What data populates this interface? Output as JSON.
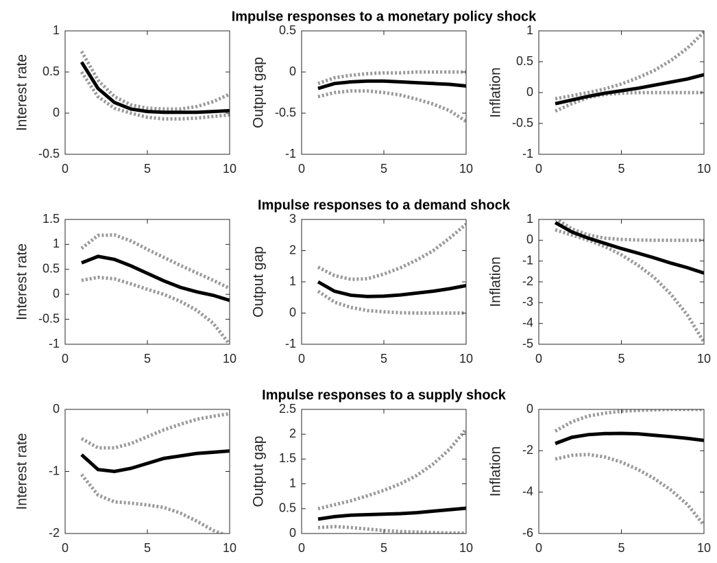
{
  "chart_data": [
    {
      "type": "line",
      "ylabel": "Interest rate",
      "x": [
        1,
        2,
        3,
        4,
        5,
        6,
        7,
        8,
        9,
        10
      ],
      "xlim": [
        0,
        10
      ],
      "xticks": [
        0,
        5,
        10
      ],
      "ylim": [
        -0.5,
        1
      ],
      "yticks": [
        -0.5,
        0,
        0.5,
        1
      ],
      "series": [
        {
          "color": "#999999",
          "style": "dotted",
          "values": [
            0.75,
            0.4,
            0.2,
            0.1,
            0.06,
            0.05,
            0.05,
            0.08,
            0.14,
            0.23
          ]
        },
        {
          "color": "#999999",
          "style": "dotted",
          "values": [
            0.5,
            0.2,
            0.06,
            0.0,
            -0.05,
            -0.07,
            -0.07,
            -0.06,
            -0.04,
            -0.02
          ]
        },
        {
          "color": "#000000",
          "style": "solid",
          "values": [
            0.62,
            0.3,
            0.13,
            0.05,
            0.02,
            0.01,
            0.01,
            0.01,
            0.02,
            0.03
          ]
        }
      ]
    },
    {
      "type": "line",
      "title": "Impulse responses to a monetary policy shock",
      "ylabel": "Output gap",
      "x": [
        1,
        2,
        3,
        4,
        5,
        6,
        7,
        8,
        9,
        10
      ],
      "xlim": [
        0,
        10
      ],
      "xticks": [
        0,
        5,
        10
      ],
      "ylim": [
        -1,
        0.5
      ],
      "yticks": [
        -1,
        -0.5,
        0,
        0.5
      ],
      "series": [
        {
          "color": "#999999",
          "style": "dotted",
          "values": [
            -0.14,
            -0.07,
            -0.04,
            -0.02,
            -0.01,
            -0.01,
            0,
            0,
            0,
            0
          ]
        },
        {
          "color": "#999999",
          "style": "dotted",
          "values": [
            -0.3,
            -0.25,
            -0.23,
            -0.23,
            -0.25,
            -0.28,
            -0.33,
            -0.39,
            -0.47,
            -0.6
          ]
        },
        {
          "color": "#000000",
          "style": "solid",
          "values": [
            -0.2,
            -0.14,
            -0.12,
            -0.11,
            -0.11,
            -0.12,
            -0.13,
            -0.14,
            -0.15,
            -0.17
          ]
        }
      ]
    },
    {
      "type": "line",
      "ylabel": "Inflation",
      "x": [
        1,
        2,
        3,
        4,
        5,
        6,
        7,
        8,
        9,
        10
      ],
      "xlim": [
        0,
        10
      ],
      "xticks": [
        0,
        5,
        10
      ],
      "ylim": [
        -1,
        1
      ],
      "yticks": [
        -1,
        -0.5,
        0,
        0.5,
        1
      ],
      "series": [
        {
          "color": "#999999",
          "style": "dotted",
          "values": [
            -0.1,
            -0.05,
            0,
            0.06,
            0.14,
            0.24,
            0.36,
            0.52,
            0.72,
            0.98
          ]
        },
        {
          "color": "#999999",
          "style": "dotted",
          "values": [
            -0.3,
            -0.18,
            -0.08,
            -0.03,
            -0.01,
            0,
            0,
            0,
            0,
            0
          ]
        },
        {
          "color": "#000000",
          "style": "solid",
          "values": [
            -0.18,
            -0.12,
            -0.06,
            -0.01,
            0.03,
            0.07,
            0.12,
            0.17,
            0.22,
            0.29
          ]
        }
      ]
    },
    {
      "type": "line",
      "ylabel": "Interest rate",
      "x": [
        1,
        2,
        3,
        4,
        5,
        6,
        7,
        8,
        9,
        10
      ],
      "xlim": [
        0,
        10
      ],
      "xticks": [
        0,
        5,
        10
      ],
      "ylim": [
        -1,
        1.5
      ],
      "yticks": [
        -1,
        -0.5,
        0,
        0.5,
        1,
        1.5
      ],
      "series": [
        {
          "color": "#999999",
          "style": "dotted",
          "values": [
            0.92,
            1.18,
            1.19,
            1.07,
            0.9,
            0.74,
            0.58,
            0.43,
            0.28,
            0.12
          ]
        },
        {
          "color": "#999999",
          "style": "dotted",
          "values": [
            0.28,
            0.34,
            0.31,
            0.21,
            0.1,
            0.0,
            -0.14,
            -0.32,
            -0.58,
            -1.0
          ]
        },
        {
          "color": "#000000",
          "style": "solid",
          "values": [
            0.63,
            0.76,
            0.7,
            0.57,
            0.42,
            0.27,
            0.14,
            0.05,
            -0.02,
            -0.12
          ]
        }
      ]
    },
    {
      "type": "line",
      "title": "Impulse responses to a demand shock",
      "ylabel": "Output gap",
      "x": [
        1,
        2,
        3,
        4,
        5,
        6,
        7,
        8,
        9,
        10
      ],
      "xlim": [
        0,
        10
      ],
      "xticks": [
        0,
        5,
        10
      ],
      "ylim": [
        -1,
        3
      ],
      "yticks": [
        -1,
        0,
        1,
        2,
        3
      ],
      "series": [
        {
          "color": "#999999",
          "style": "dotted",
          "values": [
            1.47,
            1.2,
            1.08,
            1.1,
            1.25,
            1.45,
            1.7,
            2.0,
            2.4,
            2.85
          ]
        },
        {
          "color": "#999999",
          "style": "dotted",
          "values": [
            0.7,
            0.35,
            0.18,
            0.08,
            0.04,
            0.01,
            0,
            0,
            0,
            0
          ]
        },
        {
          "color": "#000000",
          "style": "solid",
          "values": [
            1.0,
            0.7,
            0.57,
            0.53,
            0.54,
            0.58,
            0.64,
            0.7,
            0.78,
            0.88
          ]
        }
      ]
    },
    {
      "type": "line",
      "ylabel": "Inflation",
      "x": [
        1,
        2,
        3,
        4,
        5,
        6,
        7,
        8,
        9,
        10
      ],
      "xlim": [
        0,
        10
      ],
      "xticks": [
        0,
        5,
        10
      ],
      "ylim": [
        -5,
        1
      ],
      "yticks": [
        -5,
        -4,
        -3,
        -2,
        -1,
        0,
        1
      ],
      "series": [
        {
          "color": "#999999",
          "style": "dotted",
          "values": [
            1.05,
            0.55,
            0.25,
            0.1,
            0.04,
            0.01,
            0,
            0,
            0,
            0
          ]
        },
        {
          "color": "#999999",
          "style": "dotted",
          "values": [
            0.5,
            0.25,
            0,
            -0.3,
            -0.7,
            -1.2,
            -1.8,
            -2.6,
            -3.6,
            -4.9
          ]
        },
        {
          "color": "#000000",
          "style": "solid",
          "values": [
            0.85,
            0.4,
            0.1,
            -0.15,
            -0.4,
            -0.62,
            -0.85,
            -1.1,
            -1.32,
            -1.58
          ]
        }
      ]
    },
    {
      "type": "line",
      "ylabel": "Interest rate",
      "x": [
        1,
        2,
        3,
        4,
        5,
        6,
        7,
        8,
        9,
        10
      ],
      "xlim": [
        0,
        10
      ],
      "xticks": [
        0,
        5,
        10
      ],
      "ylim": [
        -2,
        0
      ],
      "yticks": [
        -2,
        -1,
        0
      ],
      "series": [
        {
          "color": "#999999",
          "style": "dotted",
          "values": [
            -0.47,
            -0.62,
            -0.62,
            -0.55,
            -0.44,
            -0.33,
            -0.24,
            -0.16,
            -0.11,
            -0.07
          ]
        },
        {
          "color": "#999999",
          "style": "dotted",
          "values": [
            -1.05,
            -1.38,
            -1.49,
            -1.51,
            -1.54,
            -1.58,
            -1.67,
            -1.8,
            -1.95,
            -2.05
          ]
        },
        {
          "color": "#000000",
          "style": "solid",
          "values": [
            -0.73,
            -0.97,
            -1.0,
            -0.95,
            -0.87,
            -0.79,
            -0.75,
            -0.71,
            -0.69,
            -0.67
          ]
        }
      ]
    },
    {
      "type": "line",
      "title": "Impulse responses to a supply shock",
      "ylabel": "Output gap",
      "x": [
        1,
        2,
        3,
        4,
        5,
        6,
        7,
        8,
        9,
        10
      ],
      "xlim": [
        0,
        10
      ],
      "xticks": [
        0,
        5,
        10
      ],
      "ylim": [
        0,
        2.5
      ],
      "yticks": [
        0,
        0.5,
        1,
        1.5,
        2,
        2.5
      ],
      "series": [
        {
          "color": "#999999",
          "style": "dotted",
          "values": [
            0.5,
            0.58,
            0.66,
            0.76,
            0.87,
            1.0,
            1.17,
            1.4,
            1.7,
            2.1
          ]
        },
        {
          "color": "#999999",
          "style": "dotted",
          "values": [
            0.12,
            0.14,
            0.12,
            0.09,
            0.06,
            0.04,
            0.03,
            0.02,
            0.01,
            0.01
          ]
        },
        {
          "color": "#000000",
          "style": "solid",
          "values": [
            0.29,
            0.34,
            0.37,
            0.38,
            0.39,
            0.4,
            0.42,
            0.45,
            0.48,
            0.51
          ]
        }
      ]
    },
    {
      "type": "line",
      "ylabel": "Inflation",
      "x": [
        1,
        2,
        3,
        4,
        5,
        6,
        7,
        8,
        9,
        10
      ],
      "xlim": [
        0,
        10
      ],
      "xticks": [
        0,
        5,
        10
      ],
      "ylim": [
        -6,
        0
      ],
      "yticks": [
        -6,
        -4,
        -2,
        0
      ],
      "series": [
        {
          "color": "#999999",
          "style": "dotted",
          "values": [
            -1.05,
            -0.6,
            -0.32,
            -0.18,
            -0.09,
            -0.05,
            -0.02,
            0,
            0,
            0
          ]
        },
        {
          "color": "#999999",
          "style": "dotted",
          "values": [
            -2.4,
            -2.22,
            -2.18,
            -2.3,
            -2.55,
            -2.9,
            -3.35,
            -3.9,
            -4.6,
            -5.6
          ]
        },
        {
          "color": "#000000",
          "style": "solid",
          "values": [
            -1.65,
            -1.35,
            -1.22,
            -1.17,
            -1.16,
            -1.18,
            -1.25,
            -1.32,
            -1.4,
            -1.5
          ]
        }
      ]
    }
  ]
}
